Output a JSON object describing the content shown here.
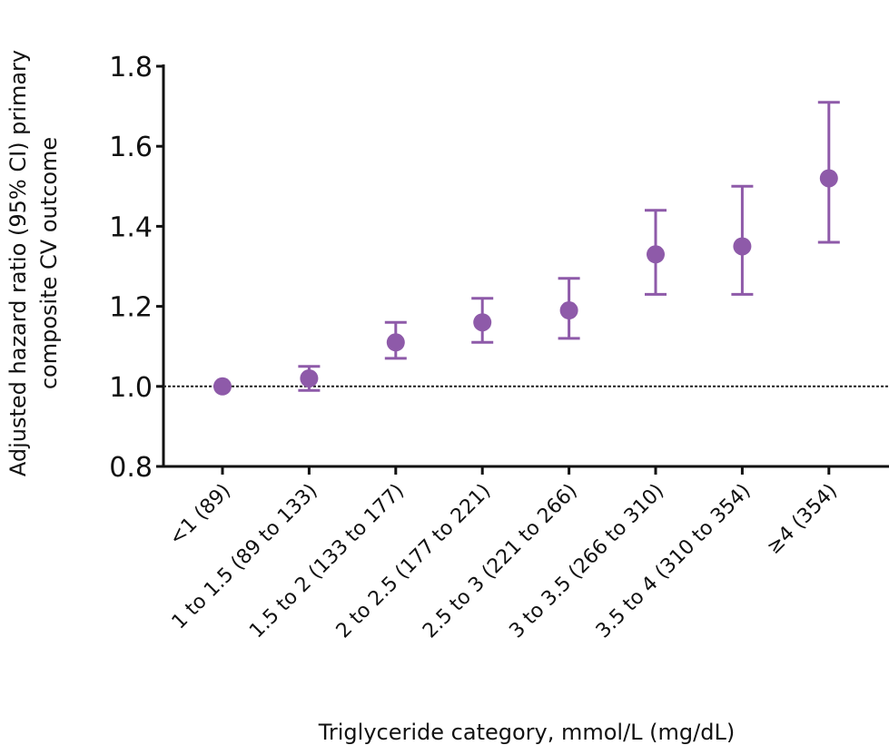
{
  "chart_data": {
    "type": "scatter",
    "title": "",
    "ylabel_lines": [
      "Adjusted hazard ratio (95% CI) primary",
      "composite CV outcome"
    ],
    "xlabel": "Triglyceride category, mmol/L (mg/dL)",
    "ylim": [
      0.8,
      1.8
    ],
    "yticks": [
      "0.8",
      "1.0",
      "1.2",
      "1.4",
      "1.6",
      "1.8"
    ],
    "reference_line": 1.0,
    "grid": false,
    "color": "#8e5aa9",
    "categories": [
      "<1 (89)",
      "1 to 1.5 (89 to 133)",
      "1.5 to 2 (133 to 177)",
      "2 to 2.5 (177 to 221)",
      "2.5 to 3 (221 to 266)",
      "3 to 3.5 (266 to 310)",
      "3.5 to 4 (310 to 354)",
      "≥4 (354)"
    ],
    "values": [
      1.0,
      1.02,
      1.11,
      1.16,
      1.19,
      1.33,
      1.35,
      1.52
    ],
    "ci_lower": [
      1.0,
      0.99,
      1.07,
      1.11,
      1.12,
      1.23,
      1.23,
      1.36
    ],
    "ci_upper": [
      1.0,
      1.05,
      1.16,
      1.22,
      1.27,
      1.44,
      1.5,
      1.71
    ]
  }
}
